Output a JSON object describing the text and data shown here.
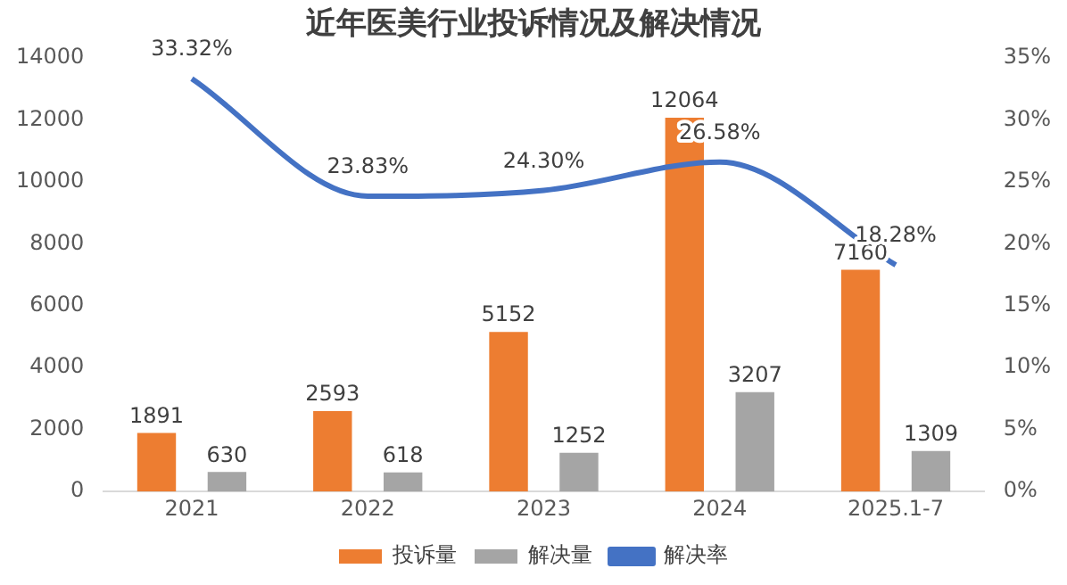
{
  "chart_data": {
    "type": "bar",
    "title": "近年医美行业投诉情况及解决情况",
    "categories": [
      "2021",
      "2022",
      "2023",
      "2024",
      "2025.1-7"
    ],
    "series": [
      {
        "name": "投诉量",
        "color": "#ed7d31",
        "values": [
          1891,
          2593,
          5152,
          12064,
          7160
        ],
        "value_labels": [
          "1891",
          "2593",
          "5152",
          "12064",
          "7160"
        ]
      },
      {
        "name": "解决量",
        "color": "#a5a5a5",
        "values": [
          630,
          618,
          1252,
          3207,
          1309
        ],
        "value_labels": [
          "630",
          "618",
          "1252",
          "3207",
          "1309"
        ]
      },
      {
        "name": "解决率",
        "type": "line",
        "axis": "y2",
        "color": "#4472c4",
        "values": [
          33.32,
          23.83,
          24.3,
          26.58,
          18.28
        ],
        "value_labels": [
          "33.32%",
          "23.83%",
          "24.30%",
          "26.58%",
          "18.28%"
        ]
      }
    ],
    "ylim": [
      0,
      14000
    ],
    "yticks": [
      0,
      2000,
      4000,
      6000,
      8000,
      10000,
      12000,
      14000
    ],
    "y2lim": [
      0,
      35
    ],
    "y2ticks": [
      {
        "value": 0,
        "label": "0%"
      },
      {
        "value": 5,
        "label": "5%"
      },
      {
        "value": 10,
        "label": "10%"
      },
      {
        "value": 15,
        "label": "15%"
      },
      {
        "value": 20,
        "label": "20%"
      },
      {
        "value": 25,
        "label": "25%"
      },
      {
        "value": 30,
        "label": "30%"
      },
      {
        "value": 35,
        "label": "35%"
      }
    ],
    "grid": false,
    "legend": "bottom",
    "marker": "none"
  }
}
